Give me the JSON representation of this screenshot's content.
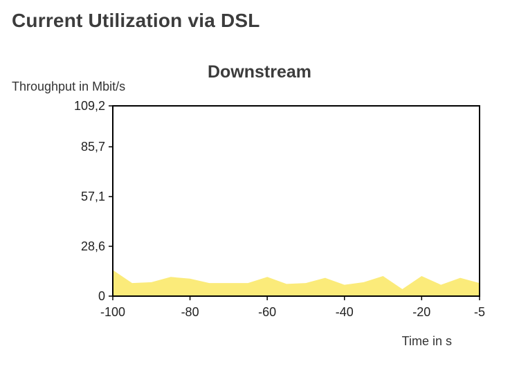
{
  "page": {
    "heading": "Current Utilization via DSL"
  },
  "colors": {
    "area_fill": "#fbeb7a",
    "frame": "#000000",
    "heading": "#3c3c3c"
  },
  "chart_data": {
    "type": "area",
    "title": "Downstream",
    "ylabel": "Throughput in Mbit/s",
    "xlabel": "Time in s",
    "xlim": [
      -100,
      -5
    ],
    "ylim": [
      0,
      109.2
    ],
    "x_ticks": [
      -100,
      -80,
      -60,
      -40,
      -20,
      -5
    ],
    "x_tick_labels": [
      "-100",
      "-80",
      "-60",
      "-40",
      "-20",
      "-5"
    ],
    "y_ticks": [
      0,
      28.6,
      57.1,
      85.7,
      109.2
    ],
    "y_tick_labels": [
      "0",
      "28,6",
      "57,1",
      "85,7",
      "109,2"
    ],
    "grid": false,
    "legend": "none",
    "series": [
      {
        "x": [
          -100,
          -95,
          -90,
          -85,
          -80,
          -75,
          -70,
          -65,
          -60,
          -55,
          -50,
          -45,
          -40,
          -35,
          -30,
          -25,
          -20,
          -15,
          -10,
          -5
        ],
        "values": [
          15,
          7.5,
          8,
          11,
          10,
          7.5,
          7.5,
          7.5,
          11,
          7,
          7.5,
          10.5,
          6.5,
          8,
          11.5,
          4,
          11.5,
          6.5,
          10.5,
          7.5
        ]
      }
    ]
  }
}
